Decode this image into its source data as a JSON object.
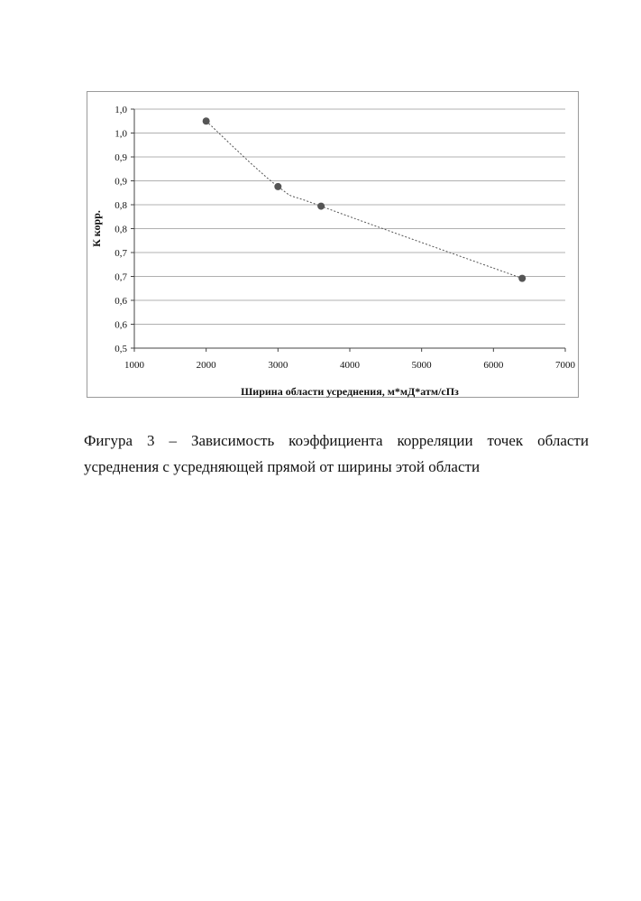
{
  "chart_data": {
    "type": "scatter",
    "trendline": "dotted",
    "ylabel": "К корр.",
    "xlabel": "Ширина области усреднения, м*мД*атм/сПз",
    "xlim": [
      1000,
      7000
    ],
    "ylim": [
      0.5,
      1.0
    ],
    "x_ticks": [
      1000,
      2000,
      3000,
      4000,
      5000,
      6000,
      7000
    ],
    "x_tick_labels": [
      "1000",
      "2000",
      "3000",
      "4000",
      "5000",
      "6000",
      "7000"
    ],
    "y_ticks": [
      0.5,
      0.55,
      0.6,
      0.65,
      0.7,
      0.75,
      0.8,
      0.85,
      0.9,
      0.95,
      1.0
    ],
    "y_tick_labels": [
      "0,5",
      "0,6",
      "0,6",
      "0,7",
      "0,7",
      "0,8",
      "0,8",
      "0,9",
      "0,9",
      "1,0",
      "1,0"
    ],
    "grid": "horizontal",
    "points": [
      {
        "x": 2000,
        "y": 0.975
      },
      {
        "x": 3000,
        "y": 0.838
      },
      {
        "x": 3600,
        "y": 0.797
      },
      {
        "x": 6400,
        "y": 0.646
      }
    ],
    "colors": {
      "point": "#555555",
      "grid": "#b0b0b0",
      "trend": "#555555"
    }
  },
  "caption": {
    "word1": "Фигура",
    "word2": "3",
    "word3": "–",
    "word4": "Зависимость",
    "word5": "коэффициента",
    "word6": "корреляции",
    "word7": "точек",
    "word8": "области",
    "line2": "усреднения с усредняющей прямой от ширины этой области"
  }
}
